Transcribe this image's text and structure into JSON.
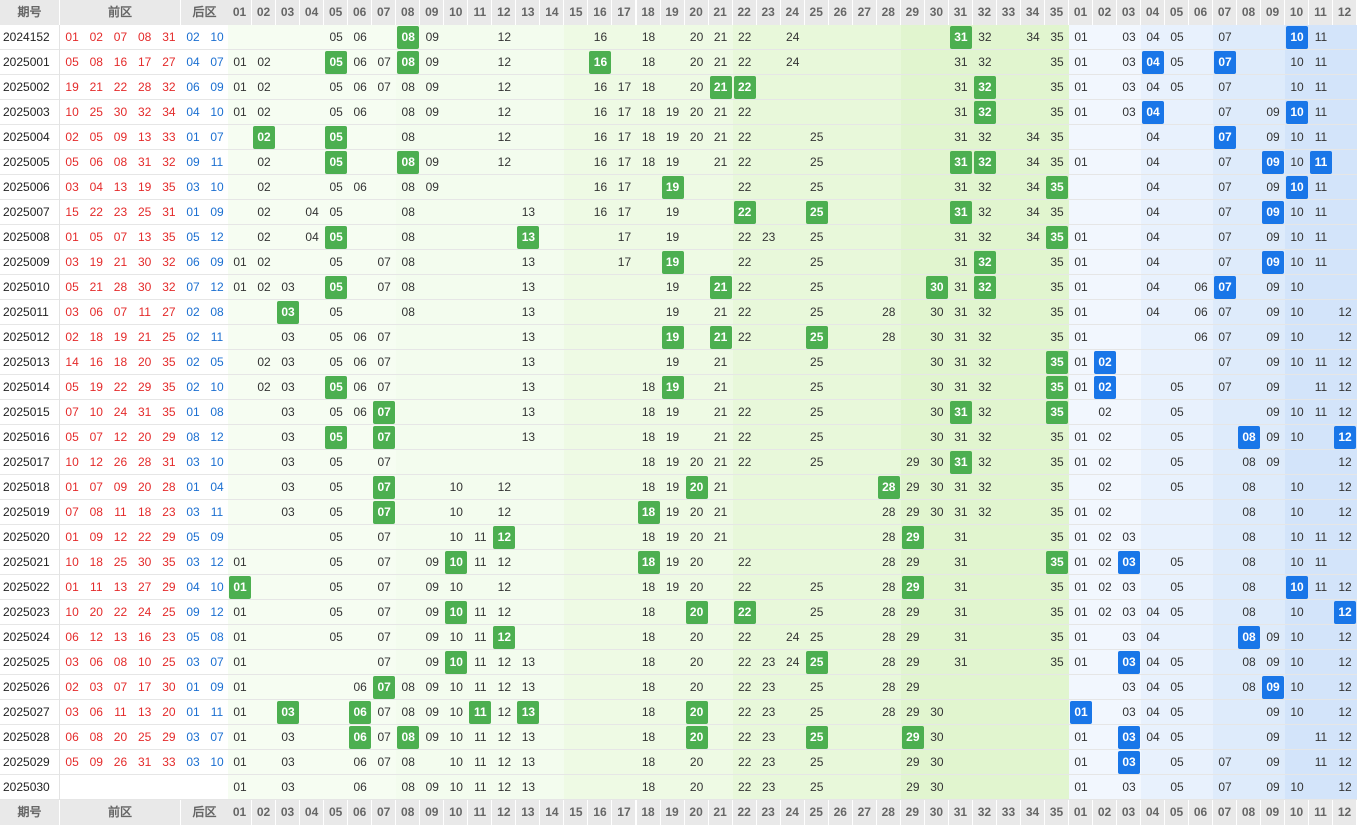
{
  "header": {
    "issue_label": "期号",
    "front_label": "前区",
    "back_label": "后区",
    "front_nums": [
      "01",
      "02",
      "03",
      "04",
      "05",
      "06",
      "07",
      "08",
      "09",
      "10",
      "11",
      "12",
      "13",
      "14",
      "15",
      "16",
      "17",
      "18",
      "19",
      "20",
      "21",
      "22",
      "23",
      "24",
      "25",
      "26",
      "27",
      "28",
      "29",
      "30",
      "31",
      "32",
      "33",
      "34",
      "35"
    ],
    "back_nums": [
      "01",
      "02",
      "03",
      "04",
      "05",
      "06",
      "07",
      "08",
      "09",
      "10",
      "11",
      "12"
    ]
  },
  "colors": {
    "front_draw": "#e42a2a",
    "back_draw": "#1b6fd1",
    "front_hit": "#4caf50",
    "back_hit": "#1976e8"
  },
  "rows": [
    {
      "issue": "2024152",
      "front": [
        "01",
        "02",
        "07",
        "08",
        "31"
      ],
      "back": [
        "02",
        "10"
      ],
      "fz": [
        5,
        6,
        8,
        9,
        12,
        16,
        18,
        20,
        21,
        22,
        24,
        31,
        32,
        34,
        35
      ],
      "fh": [
        8,
        31
      ],
      "bz": [
        1,
        3,
        4,
        5,
        7,
        10,
        11
      ],
      "bh": [
        10
      ]
    },
    {
      "issue": "2025001",
      "front": [
        "05",
        "08",
        "16",
        "17",
        "27"
      ],
      "back": [
        "04",
        "07"
      ],
      "fz": [
        1,
        2,
        5,
        6,
        7,
        8,
        9,
        12,
        16,
        18,
        20,
        21,
        22,
        24,
        31,
        32,
        35
      ],
      "fh": [
        5,
        8,
        16
      ],
      "bz": [
        1,
        3,
        4,
        5,
        7,
        10,
        11
      ],
      "bh": [
        4,
        7
      ]
    },
    {
      "issue": "2025002",
      "front": [
        "19",
        "21",
        "22",
        "28",
        "32"
      ],
      "back": [
        "06",
        "09"
      ],
      "fz": [
        1,
        2,
        5,
        6,
        7,
        8,
        9,
        12,
        16,
        17,
        18,
        20,
        21,
        22,
        31,
        32,
        35
      ],
      "fh": [
        21,
        22,
        32
      ],
      "bz": [
        1,
        3,
        4,
        5,
        7,
        10,
        11
      ],
      "bh": []
    },
    {
      "issue": "2025003",
      "front": [
        "10",
        "25",
        "30",
        "32",
        "34"
      ],
      "back": [
        "04",
        "10"
      ],
      "fz": [
        1,
        2,
        5,
        6,
        8,
        9,
        12,
        16,
        17,
        18,
        19,
        20,
        21,
        22,
        31,
        32,
        35
      ],
      "fh": [
        32
      ],
      "bz": [
        1,
        3,
        4,
        7,
        9,
        10,
        11
      ],
      "bh": [
        4,
        10
      ]
    },
    {
      "issue": "2025004",
      "front": [
        "02",
        "05",
        "09",
        "13",
        "33"
      ],
      "back": [
        "01",
        "07"
      ],
      "fz": [
        2,
        5,
        8,
        12,
        16,
        17,
        18,
        19,
        20,
        21,
        22,
        25,
        31,
        32,
        34,
        35
      ],
      "fh": [
        2,
        5
      ],
      "bz": [
        4,
        7,
        9,
        10,
        11
      ],
      "bh": [
        7
      ]
    },
    {
      "issue": "2025005",
      "front": [
        "05",
        "06",
        "08",
        "31",
        "32"
      ],
      "back": [
        "09",
        "11"
      ],
      "fz": [
        2,
        5,
        8,
        9,
        12,
        16,
        17,
        18,
        19,
        21,
        22,
        25,
        31,
        32,
        34,
        35
      ],
      "fh": [
        5,
        8,
        31,
        32
      ],
      "bz": [
        1,
        4,
        7,
        9,
        10,
        11
      ],
      "bh": [
        9,
        11
      ]
    },
    {
      "issue": "2025006",
      "front": [
        "03",
        "04",
        "13",
        "19",
        "35"
      ],
      "back": [
        "03",
        "10"
      ],
      "fz": [
        2,
        5,
        6,
        8,
        9,
        16,
        17,
        19,
        22,
        25,
        31,
        32,
        34,
        35
      ],
      "fh": [
        19,
        35
      ],
      "bz": [
        4,
        7,
        9,
        10,
        11
      ],
      "bh": [
        10
      ]
    },
    {
      "issue": "2025007",
      "front": [
        "15",
        "22",
        "23",
        "25",
        "31"
      ],
      "back": [
        "01",
        "09"
      ],
      "fz": [
        2,
        4,
        5,
        8,
        13,
        16,
        17,
        19,
        22,
        25,
        31,
        32,
        34,
        35
      ],
      "fh": [
        22,
        25,
        31
      ],
      "bz": [
        4,
        7,
        9,
        10,
        11
      ],
      "bh": [
        9
      ]
    },
    {
      "issue": "2025008",
      "front": [
        "01",
        "05",
        "07",
        "13",
        "35"
      ],
      "back": [
        "05",
        "12"
      ],
      "fz": [
        2,
        4,
        5,
        8,
        13,
        17,
        19,
        22,
        23,
        25,
        31,
        32,
        34,
        35
      ],
      "fh": [
        5,
        13,
        35
      ],
      "bz": [
        1,
        4,
        7,
        9,
        10,
        11
      ],
      "bh": []
    },
    {
      "issue": "2025009",
      "front": [
        "03",
        "19",
        "21",
        "30",
        "32"
      ],
      "back": [
        "06",
        "09"
      ],
      "fz": [
        1,
        2,
        5,
        7,
        8,
        13,
        17,
        19,
        22,
        25,
        31,
        32,
        35
      ],
      "fh": [
        19,
        32
      ],
      "bz": [
        1,
        4,
        7,
        9,
        10,
        11
      ],
      "bh": [
        9
      ]
    },
    {
      "issue": "2025010",
      "front": [
        "05",
        "21",
        "28",
        "30",
        "32"
      ],
      "back": [
        "07",
        "12"
      ],
      "fz": [
        1,
        2,
        3,
        5,
        7,
        8,
        13,
        19,
        21,
        22,
        25,
        30,
        31,
        32,
        35
      ],
      "fh": [
        5,
        21,
        30,
        32
      ],
      "bz": [
        1,
        4,
        6,
        7,
        9,
        10
      ],
      "bh": [
        7
      ]
    },
    {
      "issue": "2025011",
      "front": [
        "03",
        "06",
        "07",
        "11",
        "27"
      ],
      "back": [
        "02",
        "08"
      ],
      "fz": [
        3,
        5,
        8,
        13,
        19,
        21,
        22,
        25,
        28,
        30,
        31,
        32,
        35
      ],
      "fh": [
        3
      ],
      "bz": [
        1,
        4,
        6,
        7,
        9,
        10,
        12
      ],
      "bh": []
    },
    {
      "issue": "2025012",
      "front": [
        "02",
        "18",
        "19",
        "21",
        "25"
      ],
      "back": [
        "02",
        "11"
      ],
      "fz": [
        3,
        5,
        6,
        7,
        13,
        19,
        21,
        22,
        25,
        28,
        30,
        31,
        32,
        35
      ],
      "fh": [
        19,
        21,
        25
      ],
      "bz": [
        1,
        6,
        7,
        9,
        10,
        12
      ],
      "bh": []
    },
    {
      "issue": "2025013",
      "front": [
        "14",
        "16",
        "18",
        "20",
        "35"
      ],
      "back": [
        "02",
        "05"
      ],
      "fz": [
        2,
        3,
        5,
        6,
        7,
        13,
        19,
        21,
        25,
        30,
        31,
        32,
        35
      ],
      "fh": [
        35
      ],
      "bz": [
        1,
        2,
        7,
        9,
        10,
        11,
        12
      ],
      "bh": [
        2
      ]
    },
    {
      "issue": "2025014",
      "front": [
        "05",
        "19",
        "22",
        "29",
        "35"
      ],
      "back": [
        "02",
        "10"
      ],
      "fz": [
        2,
        3,
        5,
        6,
        7,
        13,
        18,
        19,
        21,
        25,
        30,
        31,
        32,
        35
      ],
      "fh": [
        5,
        19,
        35
      ],
      "bz": [
        1,
        2,
        5,
        7,
        9,
        11,
        12
      ],
      "bh": [
        2
      ]
    },
    {
      "issue": "2025015",
      "front": [
        "07",
        "10",
        "24",
        "31",
        "35"
      ],
      "back": [
        "01",
        "08"
      ],
      "fz": [
        3,
        5,
        6,
        7,
        13,
        18,
        19,
        21,
        22,
        25,
        30,
        31,
        32,
        35
      ],
      "fh": [
        7,
        31,
        35
      ],
      "bz": [
        2,
        5,
        9,
        10,
        11,
        12
      ],
      "bh": []
    },
    {
      "issue": "2025016",
      "front": [
        "05",
        "07",
        "12",
        "20",
        "29"
      ],
      "back": [
        "08",
        "12"
      ],
      "fz": [
        3,
        5,
        7,
        13,
        18,
        19,
        21,
        22,
        25,
        30,
        31,
        32,
        35
      ],
      "fh": [
        5,
        7
      ],
      "bz": [
        1,
        2,
        5,
        8,
        9,
        10,
        12
      ],
      "bh": [
        8,
        12
      ]
    },
    {
      "issue": "2025017",
      "front": [
        "10",
        "12",
        "26",
        "28",
        "31"
      ],
      "back": [
        "03",
        "10"
      ],
      "fz": [
        3,
        5,
        7,
        18,
        19,
        20,
        21,
        22,
        25,
        29,
        30,
        31,
        32,
        35
      ],
      "fh": [
        31
      ],
      "bz": [
        1,
        2,
        5,
        8,
        9,
        12
      ],
      "bh": []
    },
    {
      "issue": "2025018",
      "front": [
        "01",
        "07",
        "09",
        "20",
        "28"
      ],
      "back": [
        "01",
        "04"
      ],
      "fz": [
        3,
        5,
        7,
        10,
        12,
        18,
        19,
        20,
        21,
        28,
        29,
        30,
        31,
        32,
        35
      ],
      "fh": [
        7,
        20,
        28
      ],
      "bz": [
        2,
        5,
        8,
        10,
        12
      ],
      "bh": []
    },
    {
      "issue": "2025019",
      "front": [
        "07",
        "08",
        "11",
        "18",
        "23"
      ],
      "back": [
        "03",
        "11"
      ],
      "fz": [
        3,
        5,
        7,
        10,
        12,
        18,
        19,
        20,
        21,
        28,
        29,
        30,
        31,
        32,
        35
      ],
      "fh": [
        7,
        18
      ],
      "bz": [
        1,
        2,
        8,
        10,
        12
      ],
      "bh": []
    },
    {
      "issue": "2025020",
      "front": [
        "01",
        "09",
        "12",
        "22",
        "29"
      ],
      "back": [
        "05",
        "09"
      ],
      "fz": [
        5,
        7,
        10,
        11,
        12,
        18,
        19,
        20,
        21,
        28,
        29,
        31,
        35
      ],
      "fh": [
        12,
        29
      ],
      "bz": [
        1,
        2,
        3,
        8,
        10,
        11,
        12
      ],
      "bh": []
    },
    {
      "issue": "2025021",
      "front": [
        "10",
        "18",
        "25",
        "30",
        "35"
      ],
      "back": [
        "03",
        "12"
      ],
      "fz": [
        1,
        5,
        7,
        9,
        10,
        11,
        12,
        18,
        19,
        20,
        22,
        28,
        29,
        31,
        35
      ],
      "fh": [
        10,
        18,
        35
      ],
      "bz": [
        1,
        2,
        3,
        5,
        8,
        10,
        11
      ],
      "bh": [
        3
      ]
    },
    {
      "issue": "2025022",
      "front": [
        "01",
        "11",
        "13",
        "27",
        "29"
      ],
      "back": [
        "04",
        "10"
      ],
      "fz": [
        1,
        5,
        7,
        9,
        10,
        12,
        18,
        19,
        20,
        22,
        25,
        28,
        29,
        31,
        35
      ],
      "fh": [
        1,
        29
      ],
      "bz": [
        1,
        2,
        3,
        5,
        8,
        10,
        11,
        12
      ],
      "bh": [
        10
      ]
    },
    {
      "issue": "2025023",
      "front": [
        "10",
        "20",
        "22",
        "24",
        "25"
      ],
      "back": [
        "09",
        "12"
      ],
      "fz": [
        1,
        5,
        7,
        9,
        10,
        11,
        12,
        18,
        20,
        22,
        25,
        28,
        29,
        31,
        35
      ],
      "fh": [
        10,
        20,
        22
      ],
      "bz": [
        1,
        2,
        3,
        4,
        5,
        8,
        10,
        12
      ],
      "bh": [
        12
      ]
    },
    {
      "issue": "2025024",
      "front": [
        "06",
        "12",
        "13",
        "16",
        "23"
      ],
      "back": [
        "05",
        "08"
      ],
      "fz": [
        1,
        5,
        7,
        9,
        10,
        11,
        12,
        18,
        20,
        22,
        24,
        25,
        28,
        29,
        31,
        35
      ],
      "fh": [
        12
      ],
      "bz": [
        1,
        3,
        4,
        8,
        9,
        10,
        12
      ],
      "bh": [
        8
      ]
    },
    {
      "issue": "2025025",
      "front": [
        "03",
        "06",
        "08",
        "10",
        "25"
      ],
      "back": [
        "03",
        "07"
      ],
      "fz": [
        1,
        7,
        9,
        10,
        11,
        12,
        13,
        18,
        20,
        22,
        23,
        24,
        25,
        28,
        29,
        31,
        35
      ],
      "fh": [
        10,
        25
      ],
      "bz": [
        1,
        3,
        4,
        5,
        8,
        9,
        10,
        12
      ],
      "bh": [
        3
      ]
    },
    {
      "issue": "2025026",
      "front": [
        "02",
        "03",
        "07",
        "17",
        "30"
      ],
      "back": [
        "01",
        "09"
      ],
      "fz": [
        1,
        6,
        7,
        8,
        9,
        10,
        11,
        12,
        13,
        18,
        20,
        22,
        23,
        25,
        28,
        29
      ],
      "fh": [
        7
      ],
      "bz": [
        3,
        4,
        5,
        8,
        9,
        10,
        12
      ],
      "bh": [
        9
      ]
    },
    {
      "issue": "2025027",
      "front": [
        "03",
        "06",
        "11",
        "13",
        "20"
      ],
      "back": [
        "01",
        "11"
      ],
      "fz": [
        1,
        3,
        6,
        7,
        8,
        9,
        10,
        11,
        12,
        13,
        18,
        20,
        22,
        23,
        25,
        28,
        29,
        30
      ],
      "fh": [
        3,
        6,
        11,
        13,
        20
      ],
      "bz": [
        1,
        3,
        4,
        5,
        9,
        10,
        12
      ],
      "bh": [
        1
      ]
    },
    {
      "issue": "2025028",
      "front": [
        "06",
        "08",
        "20",
        "25",
        "29"
      ],
      "back": [
        "03",
        "07"
      ],
      "fz": [
        1,
        3,
        6,
        7,
        8,
        9,
        10,
        11,
        12,
        13,
        18,
        20,
        22,
        23,
        25,
        29,
        30
      ],
      "fh": [
        6,
        8,
        20,
        25,
        29
      ],
      "bz": [
        1,
        3,
        4,
        5,
        9,
        11,
        12
      ],
      "bh": [
        3
      ]
    },
    {
      "issue": "2025029",
      "front": [
        "05",
        "09",
        "26",
        "31",
        "33"
      ],
      "back": [
        "03",
        "10"
      ],
      "fz": [
        1,
        3,
        6,
        7,
        8,
        10,
        11,
        12,
        13,
        18,
        20,
        22,
        23,
        25,
        29,
        30
      ],
      "fh": [],
      "bz": [
        1,
        3,
        5,
        7,
        9,
        11,
        12
      ],
      "bh": [
        3
      ]
    },
    {
      "issue": "2025030",
      "front": [],
      "back": [],
      "fz": [
        1,
        3,
        6,
        8,
        9,
        10,
        11,
        12,
        13,
        18,
        20,
        22,
        23,
        25,
        29,
        30
      ],
      "fh": [],
      "bz": [
        1,
        3,
        5,
        7,
        9,
        10,
        12
      ],
      "bh": []
    }
  ]
}
